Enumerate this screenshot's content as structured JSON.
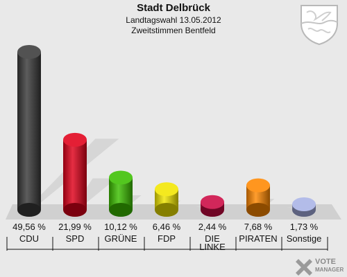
{
  "chart_data": {
    "type": "bar",
    "title": "Stadt Delbrück",
    "subtitle_line1": "Landtagswahl 13.05.2012",
    "subtitle_line2": "Zweitstimmen Bentfeld",
    "categories": [
      "CDU",
      "SPD",
      "GRÜNE",
      "FDP",
      "DIE LINKE",
      "PIRATEN",
      "Sonstige"
    ],
    "values": [
      49.56,
      21.99,
      10.12,
      6.46,
      2.44,
      7.68,
      1.73
    ],
    "value_labels": [
      "49,56 %",
      "21,99 %",
      "10,12 %",
      "6,46 %",
      "2,44 %",
      "7,68 %",
      "1,73 %"
    ],
    "colors": [
      "#3a3a3a",
      "#e0001a",
      "#3cbf00",
      "#f2e600",
      "#cc0a44",
      "#ff8800",
      "#a9b3e6"
    ],
    "ylim": [
      0,
      50
    ],
    "grid": false,
    "legend": "none"
  },
  "logo": {
    "brand_line1": "VOTE",
    "brand_line2": "MANAGER"
  }
}
